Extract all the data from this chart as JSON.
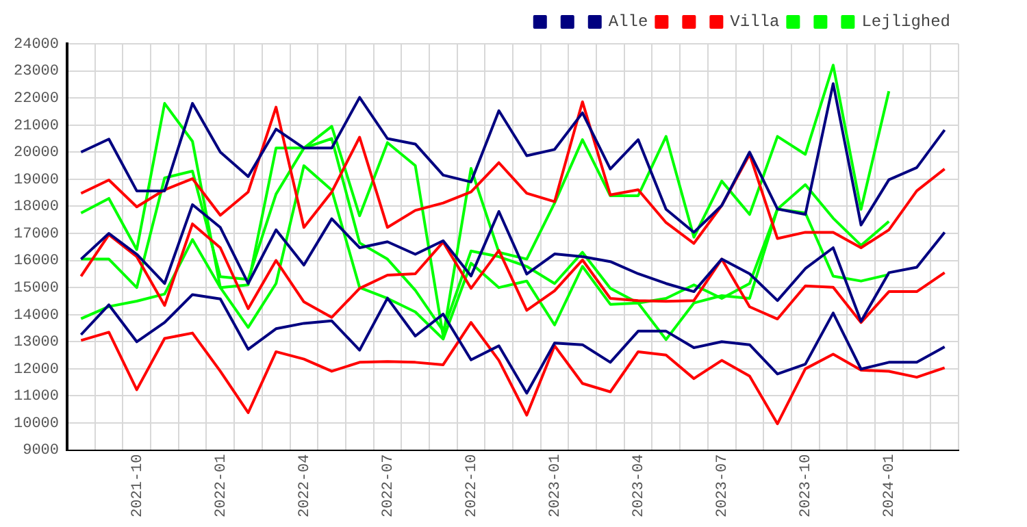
{
  "chart_data": {
    "type": "line",
    "categories": [
      null,
      null,
      "2021-10",
      null,
      null,
      "2022-01",
      null,
      null,
      "2022-04",
      null,
      null,
      "2022-07",
      null,
      null,
      "2022-10",
      null,
      null,
      "2023-01",
      null,
      null,
      "2023-04",
      null,
      null,
      "2023-07",
      null,
      null,
      "2023-10",
      null,
      null,
      "2024-01",
      null,
      null
    ],
    "series": [
      {
        "color": "#000080",
        "values": [
          20000,
          20480,
          18570,
          18570,
          21800,
          20000,
          19100,
          20850,
          20150,
          20150,
          22020,
          20500,
          20300,
          19150,
          18900,
          21530,
          19870,
          20100,
          21450,
          19380,
          20460,
          17890,
          17040,
          18030,
          20000,
          17900,
          17700,
          22530,
          17310,
          18980,
          19430,
          20820
        ]
      },
      {
        "color": "#000080",
        "values": [
          16050,
          17000,
          16230,
          15150,
          18060,
          17220,
          15150,
          17130,
          15830,
          17540,
          16470,
          16690,
          16230,
          16730,
          15430,
          17810,
          15500,
          16240,
          16140,
          15960,
          15510,
          15150,
          14850,
          16050,
          15510,
          14520,
          15700,
          16470,
          13750,
          15550,
          15750,
          17040
        ]
      },
      {
        "name": "Alle",
        "color": "#000080",
        "values": [
          13260,
          14360,
          13000,
          13710,
          14740,
          14580,
          12720,
          13480,
          13680,
          13770,
          12690,
          14610,
          13210,
          14020,
          12330,
          12850,
          11100,
          12950,
          12890,
          12240,
          13390,
          13390,
          12780,
          13000,
          12890,
          11810,
          12170,
          14060,
          11990,
          12240,
          12240,
          12810
        ]
      },
      {
        "color": "#ff0000",
        "values": [
          18480,
          18970,
          17980,
          18610,
          19020,
          17670,
          18530,
          21660,
          17220,
          18530,
          20550,
          17220,
          17850,
          18120,
          18530,
          19610,
          18480,
          18170,
          21860,
          18420,
          18610,
          17400,
          16630,
          18030,
          19920,
          16810,
          17040,
          17040,
          16470,
          17130,
          18570,
          19380
        ]
      },
      {
        "color": "#ff0000",
        "values": [
          15420,
          16950,
          16140,
          14340,
          17350,
          16470,
          14220,
          16000,
          14470,
          13900,
          14970,
          15460,
          15510,
          16680,
          14970,
          16370,
          14160,
          14880,
          16020,
          14600,
          14520,
          14490,
          14520,
          16050,
          14290,
          13840,
          15060,
          15010,
          13710,
          14850,
          14850,
          15550
        ]
      },
      {
        "name": "Villa",
        "color": "#ff0000",
        "values": [
          13050,
          13350,
          11230,
          13120,
          13320,
          11910,
          10380,
          12630,
          12360,
          11910,
          12240,
          12270,
          12240,
          12150,
          13710,
          12310,
          10290,
          12850,
          11460,
          11150,
          12630,
          12510,
          11640,
          12310,
          11730,
          9970,
          12000,
          12540,
          11950,
          11910,
          11690,
          12040
        ]
      },
      {
        "color": "#00ff00",
        "values": [
          17750,
          18290,
          16400,
          21800,
          20400,
          15000,
          15100,
          20150,
          20150,
          20950,
          17650,
          20350,
          19500,
          13200,
          19400,
          16300,
          16050,
          18120,
          20460,
          18390,
          18390,
          20580,
          16860,
          18930,
          17700,
          20580,
          19920,
          23210,
          17890,
          22250,
          null,
          null
        ]
      },
      {
        "color": "#00ff00",
        "values": [
          16050,
          16050,
          15000,
          19050,
          19300,
          15400,
          15300,
          18450,
          20150,
          20500,
          16650,
          16050,
          14900,
          13400,
          16350,
          16140,
          15780,
          15150,
          16300,
          14970,
          14430,
          14600,
          15100,
          14600,
          15150,
          17900,
          18800,
          17560,
          16560,
          17440,
          null,
          null
        ]
      },
      {
        "name": "Lejlighed",
        "color": "#00ff00",
        "values": [
          13850,
          14300,
          14500,
          14760,
          16770,
          15000,
          13530,
          15150,
          19500,
          18600,
          15000,
          14600,
          14100,
          13100,
          15900,
          15000,
          15240,
          13620,
          15780,
          14380,
          14430,
          13080,
          14430,
          14700,
          14600,
          17900,
          17760,
          15420,
          15240,
          15480,
          null,
          null
        ]
      }
    ],
    "ylim": [
      9000,
      24000
    ],
    "yticks": [
      9000,
      10000,
      11000,
      12000,
      13000,
      14000,
      15000,
      16000,
      17000,
      18000,
      19000,
      20000,
      21000,
      22000,
      23000,
      24000
    ],
    "grid": true,
    "legend": "top right",
    "marker": "none"
  }
}
